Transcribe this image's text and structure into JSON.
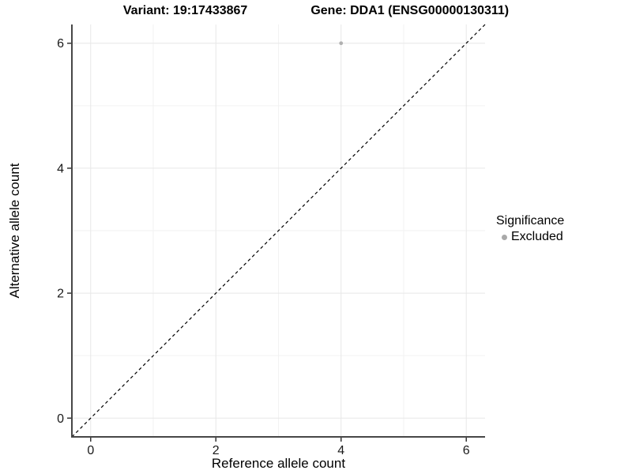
{
  "figure": {
    "title_left": "Variant: 19:17433867",
    "title_right": "Gene: DDA1 (ENSG00000130311)"
  },
  "chart_data": {
    "type": "scatter",
    "title": "Variant: 19:17433867   Gene: DDA1 (ENSG00000130311)",
    "xlabel": "Reference allele count",
    "ylabel": "Alternative allele count",
    "xlim": [
      -0.3,
      6.3
    ],
    "ylim": [
      -0.3,
      6.3
    ],
    "x_ticks": [
      0,
      2,
      4,
      6
    ],
    "y_ticks": [
      0,
      2,
      4,
      6
    ],
    "x_minor_ticks": [
      1,
      3,
      5
    ],
    "y_minor_ticks": [
      1,
      3,
      5
    ],
    "grid": true,
    "series": [
      {
        "name": "Excluded",
        "points": [
          {
            "x": 4,
            "y": 6
          }
        ],
        "color": "#b0b0b0"
      }
    ],
    "reference_line": {
      "type": "identity",
      "style": "dashed",
      "from": [
        -0.3,
        -0.3
      ],
      "to": [
        6.3,
        6.3
      ],
      "color": "#000000"
    },
    "legend": {
      "title": "Significance",
      "position": "right",
      "items": [
        {
          "label": "Excluded",
          "color": "#a9a9a9"
        }
      ]
    },
    "colors": {
      "grid_major": "#e7e7e7",
      "grid_minor": "#f2f2f2",
      "axis_line": "#474747",
      "tick_mark": "#333333",
      "tick_label": "#1a1a1a",
      "background": "#ffffff"
    }
  }
}
